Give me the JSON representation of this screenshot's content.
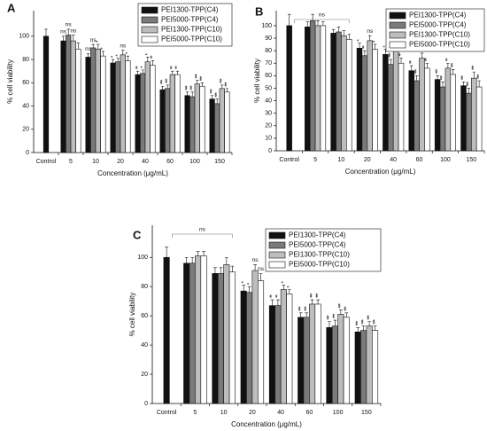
{
  "chart_data": [
    {
      "type": "bar",
      "panel_label": "A",
      "x_label": "Concentration (μg/mL)",
      "y_label": "% cell viability",
      "categories": [
        "Control",
        "5",
        "10",
        "20",
        "40",
        "60",
        "100",
        "150"
      ],
      "ylim": [
        0,
        122
      ],
      "yticks": [
        0,
        20,
        40,
        60,
        80,
        100
      ],
      "series": [
        {
          "name": "PEI1300-TPP(C4)",
          "color": "#111111",
          "values": [
            100,
            96,
            82,
            77,
            67,
            54,
            49,
            46
          ],
          "errors": [
            6,
            4,
            3,
            3,
            3,
            3,
            3,
            3
          ],
          "annotations": [
            null,
            "ns",
            "ns",
            "*",
            "**",
            "***",
            "***",
            "***"
          ]
        },
        {
          "name": "PEI5000-TPP(C4)",
          "color": "#7a7a7a",
          "values": [
            null,
            101,
            90,
            78,
            68,
            55,
            48,
            42
          ],
          "errors": [
            null,
            5,
            3,
            3,
            3,
            3,
            4,
            4
          ],
          "annotations": [
            null,
            "ns",
            "ns",
            "*",
            "*",
            "***",
            "***",
            "***"
          ]
        },
        {
          "name": "PEI1300-TPP(C10)",
          "color": "#bdbdbd",
          "values": [
            null,
            96,
            89,
            84,
            78,
            67,
            59,
            55
          ],
          "errors": [
            null,
            5,
            4,
            4,
            4,
            3,
            3,
            3
          ],
          "annotations": [
            null,
            "ns",
            "*",
            "ns",
            "*",
            "**",
            "***",
            "***"
          ]
        },
        {
          "name": "PEI5000-TPP(C10)",
          "color": "#ffffff",
          "values": [
            null,
            89,
            83,
            79,
            75,
            67,
            57,
            52
          ],
          "errors": [
            null,
            5,
            4,
            4,
            4,
            3,
            3,
            3
          ],
          "annotations": [
            null,
            null,
            "*",
            "*",
            "**",
            "**",
            "***",
            "***"
          ]
        }
      ]
    },
    {
      "type": "bar",
      "panel_label": "B",
      "x_label": "Concentration (μg/mL)",
      "y_label": "% cell viability",
      "bracket_label": "ns",
      "categories": [
        "Control",
        "5",
        "10",
        "20",
        "40",
        "60",
        "100",
        "150"
      ],
      "ylim": [
        0,
        112
      ],
      "yticks": [
        0,
        10,
        20,
        30,
        40,
        50,
        60,
        70,
        80,
        90,
        100
      ],
      "series": [
        {
          "name": "PEI1300-TPP(C4)",
          "color": "#111111",
          "values": [
            100,
            99,
            94,
            82,
            77,
            64,
            57,
            52
          ],
          "errors": [
            9,
            4,
            3,
            4,
            4,
            4,
            3,
            3
          ],
          "annotations": [
            null,
            null,
            null,
            "*",
            "*",
            "**",
            "***",
            "***"
          ]
        },
        {
          "name": "PEI5000-TPP(C4)",
          "color": "#7a7a7a",
          "values": [
            null,
            104,
            95,
            76,
            69,
            56,
            51,
            46
          ],
          "errors": [
            null,
            5,
            4,
            4,
            4,
            4,
            4,
            4
          ],
          "annotations": [
            null,
            null,
            null,
            "**",
            "***",
            "***",
            "***",
            "***"
          ]
        },
        {
          "name": "PEI1300-TPP(C10)",
          "color": "#bdbdbd",
          "values": [
            null,
            100,
            92,
            88,
            80,
            74,
            66,
            58
          ],
          "errors": [
            null,
            4,
            4,
            4,
            5,
            4,
            4,
            5
          ],
          "annotations": [
            null,
            null,
            null,
            "ns",
            "*",
            "*",
            "**",
            "***"
          ]
        },
        {
          "name": "PEI5000-TPP(C10)",
          "color": "#ffffff",
          "values": [
            null,
            100,
            89,
            81,
            70,
            66,
            61,
            51
          ],
          "errors": [
            null,
            3,
            4,
            4,
            4,
            4,
            4,
            5
          ],
          "annotations": [
            null,
            null,
            null,
            "*",
            "**",
            "**",
            "***",
            "***"
          ]
        }
      ]
    },
    {
      "type": "bar",
      "panel_label": "C",
      "x_label": "Concentration (μg/mL)",
      "y_label": "% cell viability",
      "bracket_label": "ns",
      "categories": [
        "Control",
        "5",
        "10",
        "20",
        "40",
        "60",
        "100",
        "150"
      ],
      "ylim": [
        0,
        122
      ],
      "yticks": [
        0,
        20,
        40,
        60,
        80,
        100
      ],
      "series": [
        {
          "name": "PEI1300-TPP(C4)",
          "color": "#111111",
          "values": [
            100,
            96,
            89,
            77,
            67,
            59,
            52,
            49
          ],
          "errors": [
            7,
            4,
            4,
            4,
            4,
            3,
            4,
            3
          ],
          "annotations": [
            null,
            null,
            null,
            "*",
            "**",
            "***",
            "***",
            "***"
          ]
        },
        {
          "name": "PEI5000-TPP(C4)",
          "color": "#7a7a7a",
          "values": [
            null,
            96,
            89,
            76,
            67,
            59,
            53,
            50
          ],
          "errors": [
            null,
            4,
            4,
            4,
            4,
            3,
            4,
            3
          ],
          "annotations": [
            null,
            null,
            null,
            "*",
            "**",
            "***",
            "***",
            "***"
          ]
        },
        {
          "name": "PEI1300-TPP(C10)",
          "color": "#bdbdbd",
          "values": [
            null,
            101,
            95,
            91,
            78,
            68,
            61,
            53
          ],
          "errors": [
            null,
            3,
            5,
            4,
            3,
            3,
            3,
            3
          ],
          "annotations": [
            null,
            null,
            null,
            "ns",
            "*",
            "***",
            "***",
            "***"
          ]
        },
        {
          "name": "PEI5000-TPP(C10)",
          "color": "#ffffff",
          "values": [
            null,
            101,
            90,
            84,
            75,
            68,
            59,
            50
          ],
          "errors": [
            null,
            3,
            4,
            5,
            3,
            3,
            3,
            3
          ],
          "annotations": [
            null,
            null,
            null,
            "ns",
            "*",
            "***",
            "***",
            "***"
          ]
        }
      ]
    }
  ]
}
